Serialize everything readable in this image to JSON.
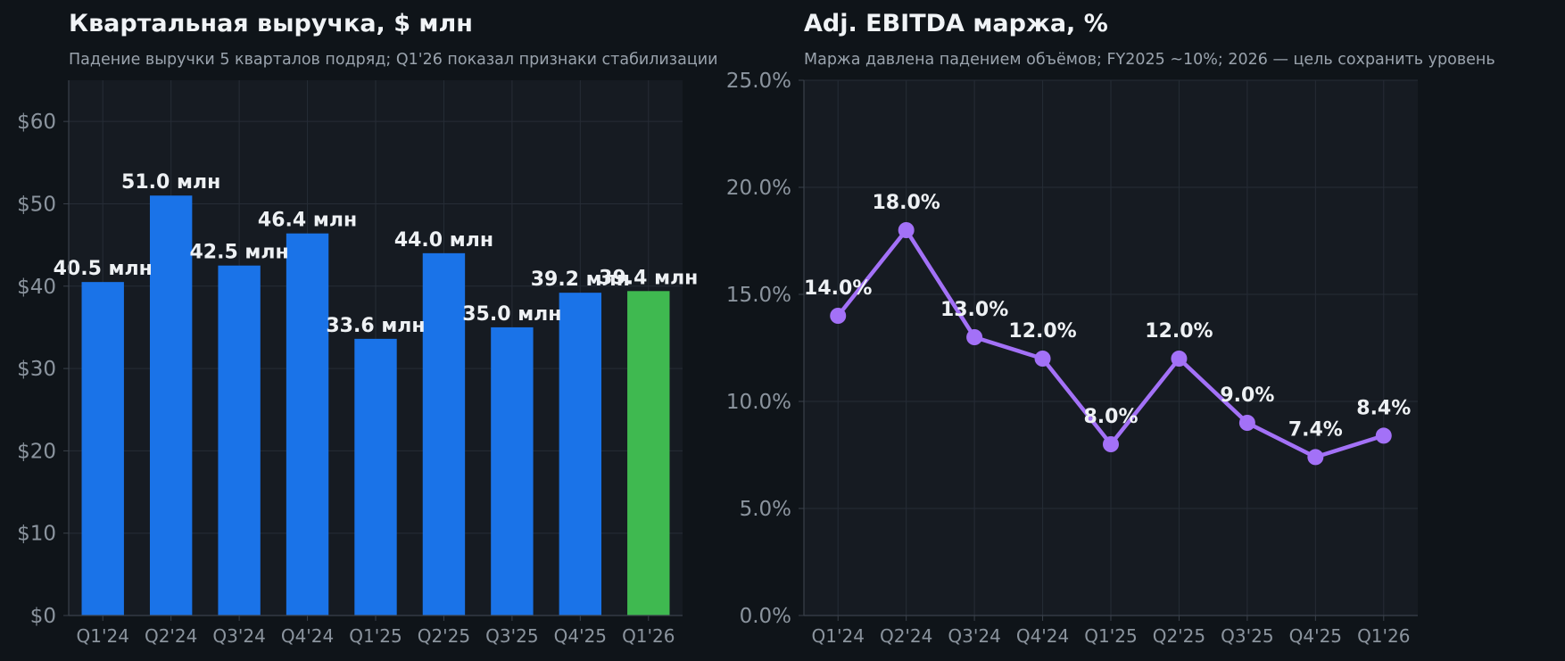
{
  "colors": {
    "background": "#0f1419",
    "plot_background": "#161b22",
    "bar": "#1a73e8",
    "bar_highlight": "#3fb950",
    "line": "#a371f7",
    "grid": "#262c36",
    "text": "#eef1f4",
    "muted_text": "#8b949e"
  },
  "chart_data": [
    {
      "type": "bar",
      "title": "Квартальная выручка, $ млн",
      "subtitle": "Падение выручки 5 кварталов подряд; Q1'26 показал признаки стабилизации",
      "xlabel": "",
      "ylabel": "",
      "categories": [
        "Q1'24",
        "Q2'24",
        "Q3'24",
        "Q4'24",
        "Q1'25",
        "Q2'25",
        "Q3'25",
        "Q4'25",
        "Q1'26"
      ],
      "values": [
        40.5,
        51.0,
        42.5,
        46.4,
        33.6,
        44.0,
        35.0,
        39.2,
        39.4
      ],
      "data_labels": [
        "40.5 млн",
        "51.0 млн",
        "42.5 млн",
        "46.4 млн",
        "33.6 млн",
        "44.0 млн",
        "35.0 млн",
        "39.2 млн",
        "39.4 млн"
      ],
      "highlight_index": 8,
      "ylim": [
        0,
        65
      ],
      "yticks": [
        0,
        10,
        20,
        30,
        40,
        50,
        60
      ],
      "ytick_labels": [
        "$0",
        "$10",
        "$20",
        "$30",
        "$40",
        "$50",
        "$60"
      ],
      "grid": true,
      "legend": "none"
    },
    {
      "type": "line",
      "title": "Adj. EBITDA маржа, %",
      "subtitle": "Маржа давлена падением объёмов; FY2025 ~10%; 2026 — цель сохранить уровень",
      "xlabel": "",
      "ylabel": "",
      "categories": [
        "Q1'24",
        "Q2'24",
        "Q3'24",
        "Q4'24",
        "Q1'25",
        "Q2'25",
        "Q3'25",
        "Q4'25",
        "Q1'26"
      ],
      "values": [
        14.0,
        18.0,
        13.0,
        12.0,
        8.0,
        12.0,
        9.0,
        7.4,
        8.4
      ],
      "data_labels": [
        "14.0%",
        "18.0%",
        "13.0%",
        "12.0%",
        "8.0%",
        "12.0%",
        "9.0%",
        "7.4%",
        "8.4%"
      ],
      "ylim": [
        0,
        25
      ],
      "yticks": [
        0,
        5,
        10,
        15,
        20,
        25
      ],
      "ytick_labels": [
        "0.0%",
        "5.0%",
        "10.0%",
        "15.0%",
        "20.0%",
        "25.0%"
      ],
      "grid": true,
      "legend": "none"
    }
  ]
}
